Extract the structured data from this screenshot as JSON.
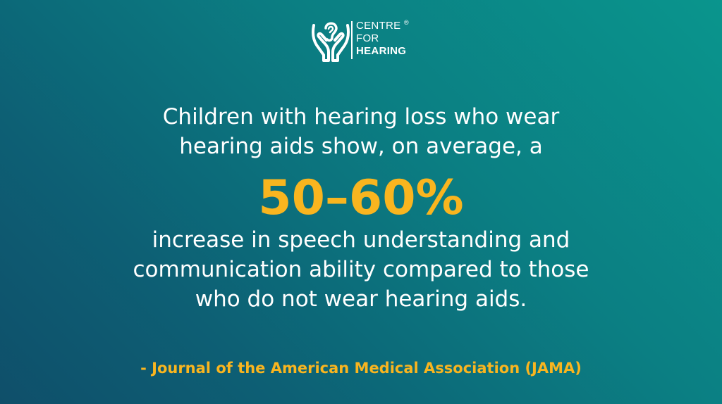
{
  "logo": {
    "icon": "hands-holding-ear-icon",
    "line1": "CENTRE",
    "registered": "®",
    "line2": "FOR",
    "line3": "HEARING"
  },
  "quote": {
    "lines_before": [
      "Children with hearing loss who wear",
      "hearing aids show, on average, a"
    ],
    "highlight": "50–60%",
    "lines_after": [
      "increase in speech understanding and",
      "communication ability compared to those",
      "who do not wear hearing aids."
    ]
  },
  "source": "- Journal of the American Medical Association (JAMA)",
  "colors": {
    "background_start": "#0a958d",
    "background_end": "#0f4f6a",
    "text": "#ffffff",
    "accent": "#f9b51f"
  }
}
